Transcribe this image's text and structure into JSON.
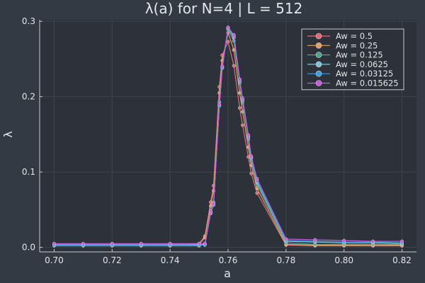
{
  "chart_data": {
    "type": "line",
    "title": "λ(a) for N=4 | L = 512",
    "xlabel": "a",
    "ylabel": "λ",
    "xlim": [
      0.695,
      0.825
    ],
    "ylim": [
      -0.006,
      0.302
    ],
    "xticks": [
      0.7,
      0.72,
      0.74,
      0.76,
      0.78,
      0.8,
      0.82
    ],
    "xtick_labels": [
      "0.70",
      "0.72",
      "0.74",
      "0.76",
      "0.78",
      "0.80",
      "0.82"
    ],
    "yticks": [
      0.0,
      0.1,
      0.2,
      0.3
    ],
    "ytick_labels": [
      "0.0",
      "0.1",
      "0.2",
      "0.3"
    ],
    "grid": true,
    "legend_position": "top-right",
    "x": [
      0.7,
      0.71,
      0.72,
      0.73,
      0.74,
      0.75,
      0.752,
      0.754,
      0.755,
      0.757,
      0.758,
      0.76,
      0.762,
      0.764,
      0.765,
      0.767,
      0.768,
      0.77,
      0.78,
      0.79,
      0.8,
      0.81,
      0.82
    ],
    "series": [
      {
        "name": "Aw = 0.5",
        "color": "#e26b72",
        "values": [
          0.004,
          0.004,
          0.004,
          0.004,
          0.004,
          0.005,
          0.015,
          0.06,
          0.082,
          0.213,
          0.255,
          0.273,
          0.241,
          0.185,
          0.162,
          0.12,
          0.098,
          0.072,
          0.003,
          0.002,
          0.002,
          0.002,
          0.002
        ]
      },
      {
        "name": "Aw = 0.25",
        "color": "#e2a060",
        "values": [
          0.003,
          0.003,
          0.003,
          0.003,
          0.003,
          0.004,
          0.013,
          0.055,
          0.075,
          0.205,
          0.248,
          0.285,
          0.262,
          0.205,
          0.18,
          0.133,
          0.109,
          0.078,
          0.004,
          0.003,
          0.003,
          0.003,
          0.003
        ]
      },
      {
        "name": "Aw = 0.125",
        "color": "#4aa888",
        "values": [
          0.002,
          0.002,
          0.002,
          0.002,
          0.002,
          0.002,
          0.005,
          0.048,
          0.06,
          0.193,
          0.24,
          0.289,
          0.274,
          0.218,
          0.192,
          0.143,
          0.115,
          0.083,
          0.006,
          0.004,
          0.004,
          0.004,
          0.004
        ]
      },
      {
        "name": "Aw = 0.0625",
        "color": "#7dc3d6",
        "values": [
          0.003,
          0.003,
          0.003,
          0.003,
          0.003,
          0.003,
          0.004,
          0.045,
          0.057,
          0.188,
          0.238,
          0.291,
          0.278,
          0.22,
          0.195,
          0.146,
          0.118,
          0.086,
          0.008,
          0.007,
          0.006,
          0.006,
          0.005
        ]
      },
      {
        "name": "Aw = 0.03125",
        "color": "#3aa0e0",
        "values": [
          0.003,
          0.003,
          0.003,
          0.003,
          0.003,
          0.003,
          0.003,
          0.046,
          0.056,
          0.188,
          0.238,
          0.291,
          0.28,
          0.221,
          0.196,
          0.147,
          0.119,
          0.088,
          0.009,
          0.008,
          0.007,
          0.007,
          0.006
        ]
      },
      {
        "name": "Aw = 0.015625",
        "color": "#c85ae0",
        "values": [
          0.005,
          0.005,
          0.005,
          0.005,
          0.005,
          0.005,
          0.005,
          0.048,
          0.058,
          0.19,
          0.24,
          0.292,
          0.282,
          0.223,
          0.198,
          0.149,
          0.121,
          0.091,
          0.011,
          0.01,
          0.009,
          0.008,
          0.008
        ]
      }
    ]
  },
  "colors": {
    "figure_background": "#343a44",
    "plot_background": "#2d3139",
    "grid": "#3e444e",
    "axis": "#c8ccd2",
    "text": "#e3e6ea",
    "legend_border": "#c8ccd2"
  }
}
